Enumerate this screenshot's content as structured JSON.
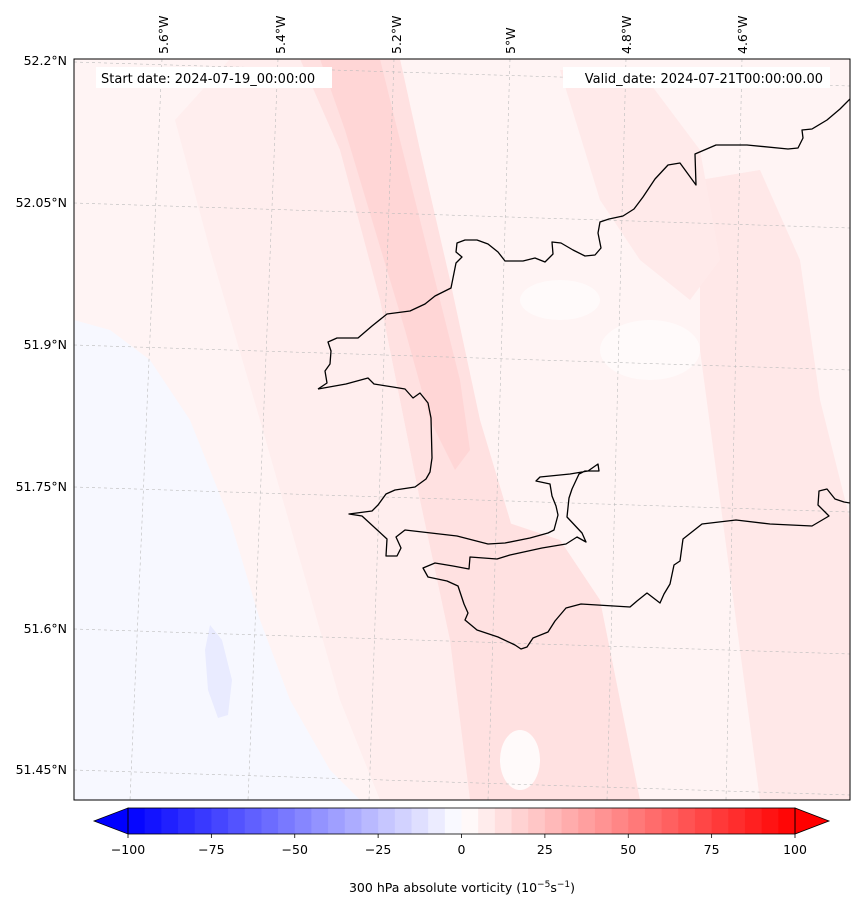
{
  "map": {
    "header": {
      "start_date": "Start date: 2024-07-19_00:00:00",
      "valid_date": "Valid_date: 2024-07-21T00:00:00.00"
    },
    "longitude_labels": [
      "5.6°W",
      "5.4°W",
      "5.2°W",
      "5°W",
      "4.8°W",
      "4.6°W"
    ],
    "latitude_labels": [
      "52.2°N",
      "52.05°N",
      "51.9°N",
      "51.75°N",
      "51.6°N",
      "51.45°N"
    ],
    "colorbar": {
      "ticks": [
        "−100",
        "−75",
        "−50",
        "−25",
        "0",
        "25",
        "50",
        "75",
        "100"
      ],
      "title_main": "300 hPa absolute vorticity (10",
      "title_exp1": "−5",
      "title_mid": "s",
      "title_exp2": "−1",
      "title_end": ")",
      "min": -100,
      "max": 100,
      "low_color": "#0000ff",
      "mid_color": "#ffffff",
      "high_color": "#ff0000"
    },
    "colors": {
      "coastline": "#000000",
      "gridline": "#bbbbbb"
    }
  }
}
